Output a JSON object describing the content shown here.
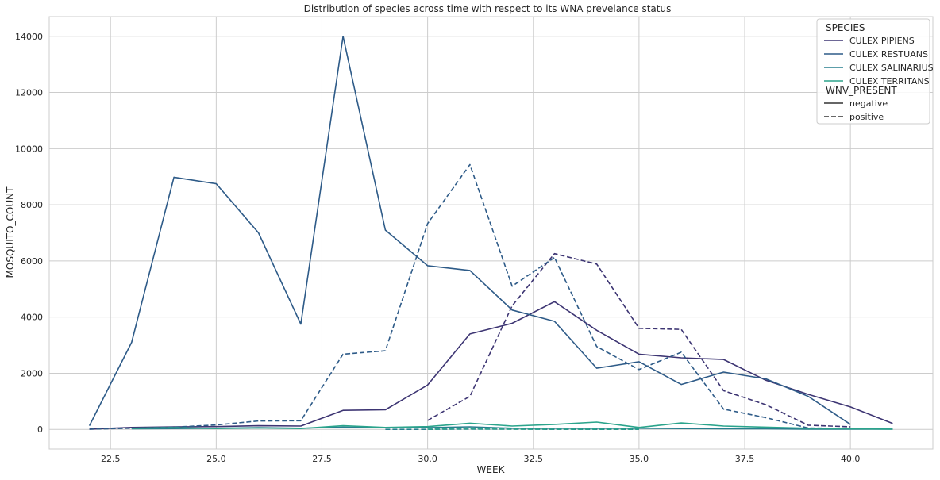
{
  "chart_data": {
    "type": "line",
    "title": "Distribution of species across time with respect to its WNA prevelance status",
    "xlabel": "WEEK",
    "ylabel": "MOSQUITO_COUNT",
    "xlim": [
      21.05,
      41.95
    ],
    "ylim": [
      -700,
      14700
    ],
    "xticks": [
      "22.5",
      "25.0",
      "27.5",
      "30.0",
      "32.5",
      "35.0",
      "37.5",
      "40.0"
    ],
    "yticks": [
      "0",
      "2000",
      "4000",
      "6000",
      "8000",
      "10000",
      "12000",
      "14000"
    ],
    "grid": true,
    "legend_position": "top-right",
    "hue_title": "SPECIES",
    "style_title": "WNV_PRESENT",
    "style_labels": [
      "negative",
      "positive"
    ],
    "series": [
      {
        "name": "CULEX PIPIENS",
        "wnv": "negative",
        "color": "#3d3573",
        "dash": false,
        "x": [
          22,
          23,
          24,
          25,
          26,
          27,
          28,
          29,
          30,
          31,
          32,
          33,
          34,
          35,
          36,
          37,
          38,
          39,
          40,
          41
        ],
        "y": [
          10,
          70,
          90,
          100,
          130,
          120,
          680,
          700,
          1580,
          3400,
          3780,
          4550,
          3530,
          2680,
          2550,
          2490,
          1750,
          1250,
          800,
          210
        ]
      },
      {
        "name": "CULEX PIPIENS",
        "wnv": "positive",
        "color": "#3d3573",
        "dash": true,
        "x": [
          30,
          31,
          32,
          33,
          34,
          35,
          36,
          37,
          38,
          39,
          40
        ],
        "y": [
          320,
          1180,
          4400,
          6260,
          5890,
          3600,
          3560,
          1380,
          880,
          150,
          90
        ]
      },
      {
        "name": "CULEX RESTUANS",
        "wnv": "negative",
        "color": "#2e5b88",
        "dash": false,
        "x": [
          22,
          23,
          24,
          25,
          26,
          27,
          28,
          29,
          30,
          31,
          32,
          33,
          34,
          35,
          36,
          37,
          38,
          39,
          40
        ],
        "y": [
          130,
          3100,
          8980,
          8750,
          7000,
          3750,
          14000,
          7100,
          5830,
          5660,
          4250,
          3850,
          2180,
          2410,
          1600,
          2040,
          1800,
          1180,
          180
        ]
      },
      {
        "name": "CULEX RESTUANS",
        "wnv": "positive",
        "color": "#2e5b88",
        "dash": true,
        "x": [
          22,
          23,
          24,
          25,
          26,
          27,
          28,
          29,
          30,
          31,
          32,
          33,
          34,
          35,
          36,
          37,
          38,
          39,
          40
        ],
        "y": [
          10,
          40,
          80,
          160,
          300,
          310,
          2680,
          2800,
          7330,
          9430,
          5100,
          6120,
          2950,
          2130,
          2750,
          720,
          420,
          50,
          30
        ]
      },
      {
        "name": "CULEX SALINARIUS",
        "wnv": "negative",
        "color": "#277f8e",
        "dash": false,
        "x": [
          23,
          24,
          25,
          26,
          27,
          28,
          29,
          30,
          31,
          32,
          33,
          34,
          35,
          36,
          37,
          38,
          39,
          40,
          41
        ],
        "y": [
          20,
          30,
          40,
          60,
          40,
          80,
          60,
          60,
          90,
          40,
          40,
          40,
          40,
          30,
          20,
          20,
          10,
          10,
          10
        ]
      },
      {
        "name": "CULEX SALINARIUS",
        "wnv": "positive",
        "color": "#277f8e",
        "dash": true,
        "x": [
          29,
          30,
          31,
          32,
          33,
          34,
          35
        ],
        "y": [
          0,
          0,
          10,
          10,
          0,
          0,
          0
        ]
      },
      {
        "name": "CULEX TERRITANS",
        "wnv": "negative",
        "color": "#2ba48c",
        "dash": false,
        "x": [
          23,
          24,
          25,
          26,
          27,
          28,
          29,
          30,
          31,
          32,
          33,
          34,
          35,
          36,
          37,
          38,
          39,
          40,
          41
        ],
        "y": [
          40,
          60,
          30,
          50,
          30,
          130,
          70,
          100,
          220,
          120,
          180,
          260,
          70,
          230,
          120,
          80,
          40,
          20,
          10
        ]
      },
      {
        "name": "CULEX TERRITANS",
        "wnv": "positive",
        "color": "#2ba48c",
        "dash": true,
        "x": [
          30,
          31,
          32,
          33,
          34,
          35
        ],
        "y": [
          10,
          20,
          10,
          10,
          10,
          10
        ]
      }
    ],
    "legend_species": [
      {
        "name": "CULEX PIPIENS",
        "color": "#3d3573"
      },
      {
        "name": "CULEX RESTUANS",
        "color": "#2e5b88"
      },
      {
        "name": "CULEX SALINARIUS",
        "color": "#277f8e"
      },
      {
        "name": "CULEX TERRITANS",
        "color": "#2ba48c"
      }
    ]
  }
}
